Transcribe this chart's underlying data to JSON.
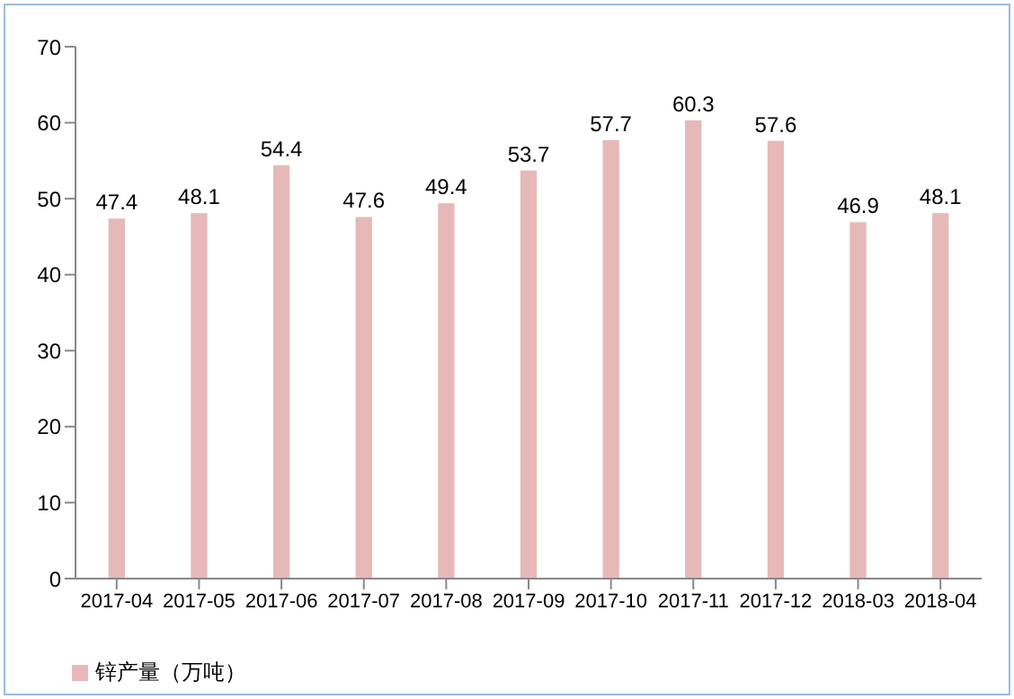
{
  "chart_data": {
    "type": "bar",
    "categories": [
      "2017-04",
      "2017-05",
      "2017-06",
      "2017-07",
      "2017-08",
      "2017-09",
      "2017-10",
      "2017-11",
      "2017-12",
      "2018-03",
      "2018-04"
    ],
    "series": [
      {
        "name": "锌产量（万吨）",
        "color": "#e6b9b8",
        "values": [
          47.4,
          48.1,
          54.4,
          47.6,
          49.4,
          53.7,
          57.7,
          60.3,
          57.6,
          46.9,
          48.1
        ]
      }
    ],
    "ylim": [
      0,
      70
    ],
    "yticks": [
      0,
      10,
      20,
      30,
      40,
      50,
      60,
      70
    ],
    "grid": false,
    "legend": "bottom left",
    "data_labels": true
  }
}
